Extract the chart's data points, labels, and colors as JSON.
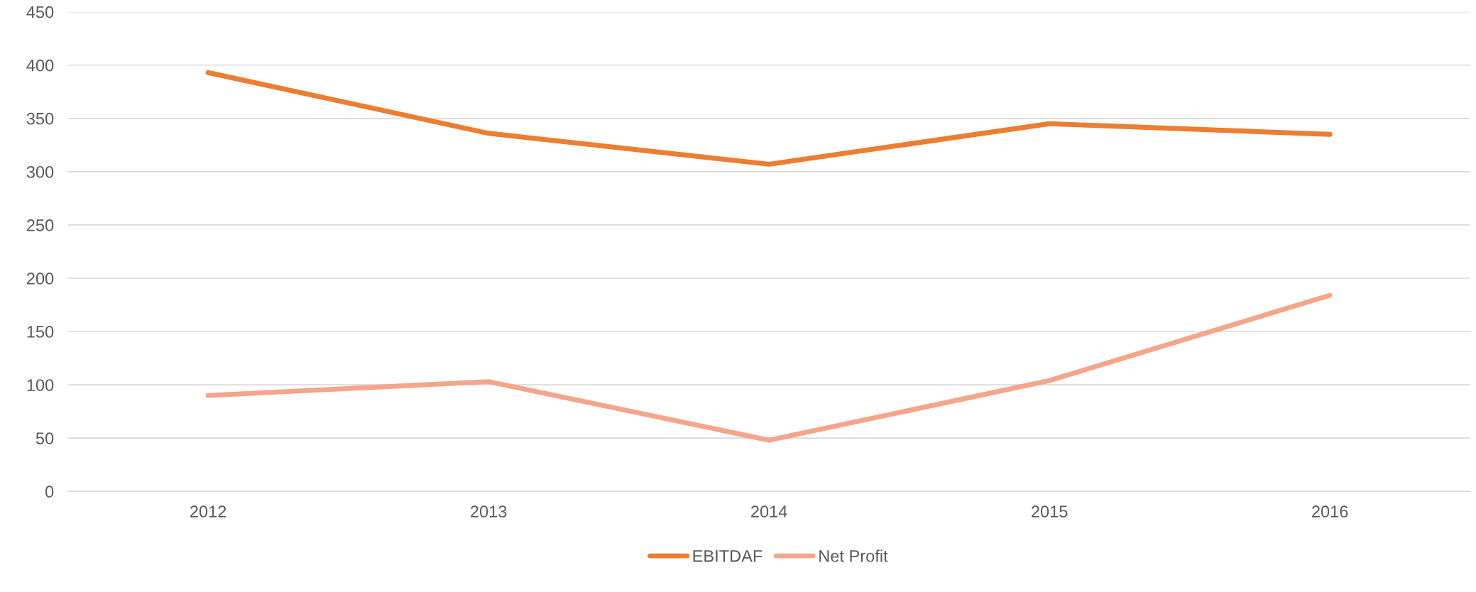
{
  "chart_data": {
    "type": "line",
    "categories": [
      "2012",
      "2013",
      "2014",
      "2015",
      "2016"
    ],
    "series": [
      {
        "name": "EBITDAF",
        "color": "#ed7d31",
        "values": [
          393,
          336,
          307,
          345,
          335
        ]
      },
      {
        "name": "Net Profit",
        "color": "#f4a58a",
        "values": [
          90,
          103,
          48,
          104,
          184
        ]
      }
    ],
    "ylim": [
      0,
      450
    ],
    "yticks": [
      0,
      50,
      100,
      150,
      200,
      250,
      300,
      350,
      400,
      450
    ],
    "grid": "y",
    "legend": "bottom",
    "marker": "none",
    "line_style": "solid"
  }
}
